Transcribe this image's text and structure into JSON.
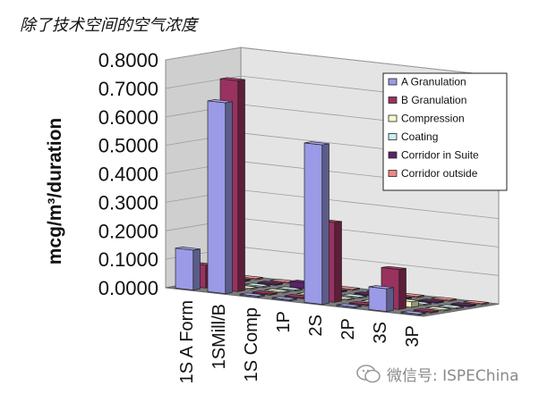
{
  "page": {
    "title": "除了技术空间的空气浓度",
    "watermark": "微信号: ISPEChina"
  },
  "chart_data": {
    "type": "bar",
    "title": "",
    "xlabel": "",
    "ylabel": "mcg/m³/duration",
    "ylim": [
      0,
      0.8
    ],
    "yticks": [
      "0.0000",
      "0.1000",
      "0.2000",
      "0.3000",
      "0.4000",
      "0.5000",
      "0.6000",
      "0.7000",
      "0.8000"
    ],
    "categories": [
      "1S A Form",
      "1SMill/B",
      "1S Comp",
      "1P",
      "2S",
      "2P",
      "3S",
      "3P"
    ],
    "legend_position": "top-right",
    "grid": true,
    "series": [
      {
        "name": "A Granulation",
        "color": "#9a9ae6",
        "values": [
          0.14,
          0.67,
          0,
          0,
          0.56,
          0,
          0.08,
          0
        ]
      },
      {
        "name": "B Granulation",
        "color": "#99325f",
        "values": [
          0.08,
          0.74,
          0,
          0,
          0.28,
          0,
          0.14,
          0
        ]
      },
      {
        "name": "Compression",
        "color": "#fbfbc8",
        "values": [
          0,
          0,
          0,
          0,
          0,
          0,
          0.02,
          0
        ]
      },
      {
        "name": "Coating",
        "color": "#c8f0f0",
        "values": [
          0,
          0,
          0,
          0,
          0,
          0,
          0,
          0
        ]
      },
      {
        "name": "Corridor in Suite",
        "color": "#5a2368",
        "values": [
          0,
          0,
          0.02,
          0,
          0,
          0,
          0,
          0
        ]
      },
      {
        "name": "Corridor outside",
        "color": "#ef8888",
        "values": [
          0,
          0,
          0,
          0,
          0,
          0,
          0,
          0
        ]
      }
    ]
  }
}
